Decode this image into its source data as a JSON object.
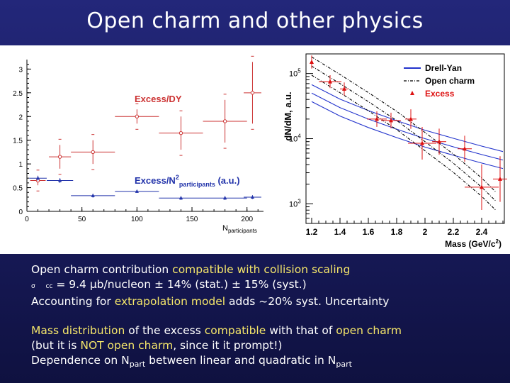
{
  "slide": {
    "title": "Open charm and other physics"
  },
  "lines": {
    "l1_a": "Open charm contribution ",
    "l1_b": "compatible with collision scaling",
    "l2_sym": "σ",
    "l2_sub": "cc",
    "l2_text": " = 9.4 μb/nucleon ± 14% (stat.) ± 15% (syst.)",
    "l3_a": "Accounting for ",
    "l3_b": "extrapolation model",
    "l3_c": " adds ~20% syst. Uncertainty",
    "l4_a": "Mass distribution",
    "l4_b": " of the excess ",
    "l4_c": "compatible",
    "l4_d": " with that of ",
    "l4_e": "open charm",
    "l5_a": "(but it is ",
    "l5_b": "NOT open charm",
    "l5_c": ", since it it prompt!)",
    "l6_a": "Dependence on N",
    "l6_sub1": "part",
    "l6_b": " between linear and quadratic in N",
    "l6_sub2": "part"
  },
  "chart_data": [
    {
      "type": "scatter",
      "xlabel": "N",
      "xlabel_sub": "participants",
      "xlim": [
        0,
        215
      ],
      "ylim": [
        0,
        3.2
      ],
      "xticks": [
        0,
        50,
        100,
        150,
        200
      ],
      "yticks": [
        0,
        0.5,
        1,
        1.5,
        2,
        2.5,
        3
      ],
      "annotations": {
        "excess_dy": "Excess/DY",
        "excess_npart_a": "Excess/N",
        "excess_npart_sup": "2",
        "excess_npart_sub": "participants",
        "excess_npart_b": " (a.u.)"
      },
      "colors": {
        "excess_dy": "#cc3333",
        "excess_npart": "#2233aa"
      },
      "series": [
        {
          "key": "excess_dy",
          "points": [
            {
              "x": 10,
              "y": 0.65,
              "xerr": 7,
              "yerr": 0.1
            },
            {
              "x": 30,
              "y": 1.15,
              "xerr": 10,
              "yerr": 0.25
            },
            {
              "x": 60,
              "y": 1.25,
              "xerr": 20,
              "yerr": 0.25
            },
            {
              "x": 100,
              "y": 2.0,
              "xerr": 20,
              "yerr": 0.15
            },
            {
              "x": 140,
              "y": 1.65,
              "xerr": 20,
              "yerr": 0.35
            },
            {
              "x": 180,
              "y": 1.9,
              "xerr": 20,
              "yerr": 0.45
            },
            {
              "x": 205,
              "y": 2.5,
              "xerr": 8,
              "yerr": 0.65
            }
          ]
        },
        {
          "key": "excess_npart",
          "points": [
            {
              "x": 10,
              "y": 0.7,
              "xerr": 8,
              "yerr": 0.05
            },
            {
              "x": 30,
              "y": 0.65,
              "xerr": 12,
              "yerr": 0.05
            },
            {
              "x": 60,
              "y": 0.33,
              "xerr": 20,
              "yerr": 0.04
            },
            {
              "x": 100,
              "y": 0.42,
              "xerr": 20,
              "yerr": 0.03
            },
            {
              "x": 140,
              "y": 0.28,
              "xerr": 20,
              "yerr": 0.04
            },
            {
              "x": 180,
              "y": 0.28,
              "xerr": 20,
              "yerr": 0.04
            },
            {
              "x": 205,
              "y": 0.3,
              "xerr": 8,
              "yerr": 0.04
            }
          ]
        }
      ]
    },
    {
      "type": "scatter",
      "xlabel": "Mass (GeV/c",
      "xlabel_sup": "2",
      "xlabel_close": ")",
      "ylabel": "dN/dM, a.u.",
      "xlim": [
        1.16,
        2.56
      ],
      "ylog": true,
      "ylim": [
        500,
        200000
      ],
      "xticks": [
        1.2,
        1.4,
        1.6,
        1.8,
        2,
        2.2,
        2.4
      ],
      "xtick_labels": [
        "1.2",
        "1.4",
        "1.6",
        "1.8",
        "2",
        "2.2",
        "2.4"
      ],
      "yticks": [
        1000,
        10000,
        100000
      ],
      "ytick_base": "10",
      "ytick_exps": [
        "3",
        "4",
        "5"
      ],
      "legend": [
        "Drell-Yan",
        "Open charm",
        "Excess"
      ],
      "colors": {
        "drell_yan": "#2233cc",
        "open_charm": "#000000",
        "excess": "#dd1111"
      },
      "drell_yan": {
        "x": [
          1.2,
          1.4,
          1.6,
          1.8,
          2.0,
          2.2,
          2.4,
          2.55
        ],
        "center": [
          50000,
          30000,
          20000,
          14000,
          10000,
          7500,
          5700,
          4700
        ],
        "band": 0.13
      },
      "open_charm": {
        "x": [
          1.2,
          1.4,
          1.6,
          1.8,
          2.0,
          2.2,
          2.4,
          2.5
        ],
        "center": [
          130000,
          70000,
          37000,
          19000,
          9000,
          4200,
          1800,
          1100
        ],
        "band": 0.14
      },
      "excess_points": [
        {
          "x": 1.2,
          "y": 150000,
          "xerr": 0.01,
          "yerr": 0.1
        },
        {
          "x": 1.33,
          "y": 75000,
          "xerr": 0.08,
          "yerr": 0.1
        },
        {
          "x": 1.43,
          "y": 58000,
          "xerr": 0.03,
          "yerr": 0.1
        },
        {
          "x": 1.66,
          "y": 20000,
          "xerr": 0.07,
          "yerr": 0.12
        },
        {
          "x": 1.76,
          "y": 19000,
          "xerr": 0.07,
          "yerr": 0.12
        },
        {
          "x": 1.9,
          "y": 20000,
          "xerr": 0.04,
          "yerr": 0.15
        },
        {
          "x": 1.98,
          "y": 8500,
          "xerr": 0.1,
          "yerr": 0.25
        },
        {
          "x": 2.1,
          "y": 9000,
          "xerr": 0.05,
          "yerr": 0.2
        },
        {
          "x": 2.28,
          "y": 7000,
          "xerr": 0.05,
          "yerr": 0.2
        },
        {
          "x": 2.4,
          "y": 1800,
          "xerr": 0.12,
          "yerr": 0.35
        },
        {
          "x": 2.53,
          "y": 2400,
          "xerr": 0.05,
          "yerr": 0.35
        }
      ]
    }
  ]
}
